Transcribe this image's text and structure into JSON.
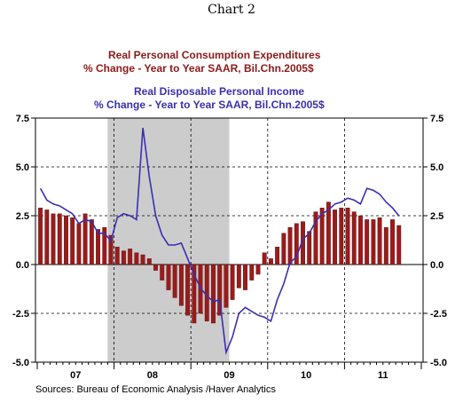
{
  "page_title": "Chart 2",
  "sources": "Sources:  Bureau of Economic Analysis /Haver Analytics",
  "colors": {
    "bars": "#9b1b1b",
    "bar_edge": "#5a0b0b",
    "line": "#3a2fb0",
    "recession": "#cccccc"
  },
  "chart_data": {
    "type": "bar+line",
    "series": [
      {
        "name": "Real Personal Consumption Expenditures",
        "subtitle": "% Change - Year to Year    SAAR, Bil.Chn.2005$",
        "type": "bar",
        "values": [
          2.9,
          2.8,
          2.6,
          2.6,
          2.5,
          2.4,
          2.1,
          2.6,
          2.3,
          1.8,
          1.9,
          1.5,
          0.9,
          0.7,
          0.8,
          0.6,
          0.5,
          0.3,
          -0.3,
          -0.8,
          -1.3,
          -1.7,
          -2.1,
          -2.6,
          -3.0,
          -2.5,
          -2.9,
          -3.0,
          -2.6,
          -2.2,
          -1.8,
          -1.2,
          -1.3,
          -0.8,
          -0.5,
          0.6,
          0.3,
          0.9,
          1.6,
          1.9,
          2.1,
          2.2,
          1.7,
          2.7,
          2.9,
          3.2,
          2.8,
          2.9,
          2.9,
          2.7,
          2.5,
          2.3,
          2.3,
          2.4,
          1.9,
          2.3,
          2.0
        ]
      },
      {
        "name": "Real Disposable Personal Income",
        "subtitle": "% Change - Year to Year    SAAR, Bil.Chn.2005$",
        "type": "line",
        "values": [
          3.9,
          3.3,
          3.1,
          3.0,
          2.8,
          2.6,
          2.1,
          2.3,
          2.2,
          1.6,
          1.6,
          1.2,
          2.4,
          2.6,
          2.5,
          2.3,
          7.0,
          4.5,
          2.5,
          1.5,
          1.0,
          1.0,
          1.1,
          0.3,
          -0.5,
          -1.2,
          -1.6,
          -1.9,
          -1.8,
          -4.5,
          -3.7,
          -2.5,
          -2.2,
          -2.4,
          -2.6,
          -2.7,
          -2.9,
          -1.8,
          -1.0,
          0.1,
          0.4,
          1.3,
          1.6,
          2.2,
          2.6,
          2.8,
          3.1,
          3.2,
          3.4,
          3.3,
          3.1,
          3.9,
          3.8,
          3.6,
          3.2,
          2.9,
          2.5
        ]
      }
    ],
    "start": "2007-01",
    "frequency": "monthly",
    "x_ticks": [
      "07",
      "08",
      "09",
      "10",
      "11"
    ],
    "ylim": [
      -5,
      7.5
    ],
    "y_ticks": [
      7.5,
      5.0,
      2.5,
      0.0,
      -2.5,
      -5.0
    ],
    "y_tick_labels": [
      "7.5",
      "5.0",
      "2.5",
      "0.0",
      "-2.5",
      "-5.0"
    ],
    "recession": {
      "start": "2007-12",
      "end": "2009-06"
    },
    "grid": true
  }
}
